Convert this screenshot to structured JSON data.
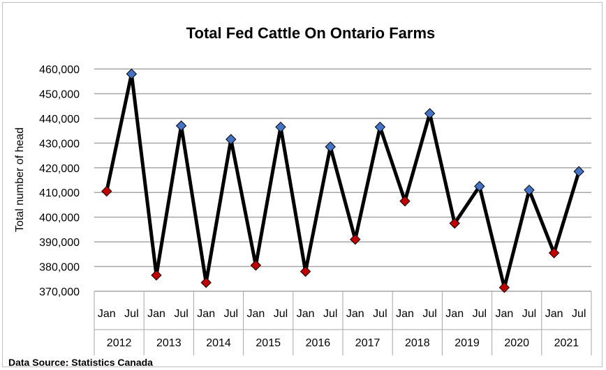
{
  "chart_data": {
    "type": "line",
    "title": "Total Fed Cattle On Ontario Farms",
    "ylabel": "Total number of head",
    "xlabel": "",
    "ylim": [
      370000,
      460000
    ],
    "y_ticks": [
      "370,000",
      "380,000",
      "390,000",
      "400,000",
      "410,000",
      "420,000",
      "430,000",
      "440,000",
      "450,000",
      "460,000"
    ],
    "y_tick_values": [
      370000,
      380000,
      390000,
      400000,
      410000,
      420000,
      430000,
      440000,
      450000,
      460000
    ],
    "grid": true,
    "legend": "none",
    "years": [
      "2012",
      "2013",
      "2014",
      "2015",
      "2016",
      "2017",
      "2018",
      "2019",
      "2020",
      "2021"
    ],
    "months": [
      "Jan",
      "Jul"
    ],
    "series": [
      {
        "values": [
          410500,
          458000,
          376500,
          437000,
          373500,
          431500,
          380500,
          436500,
          378000,
          428500,
          391000,
          436500,
          406500,
          442000,
          397500,
          412500,
          371500,
          411000,
          385500,
          418500
        ]
      }
    ],
    "marker_colors": {
      "Jan": "#c00000",
      "Jul": "#4472c4"
    },
    "line_color": "#000000"
  },
  "footer": {
    "source": "Data Source: Statistics Canada"
  }
}
